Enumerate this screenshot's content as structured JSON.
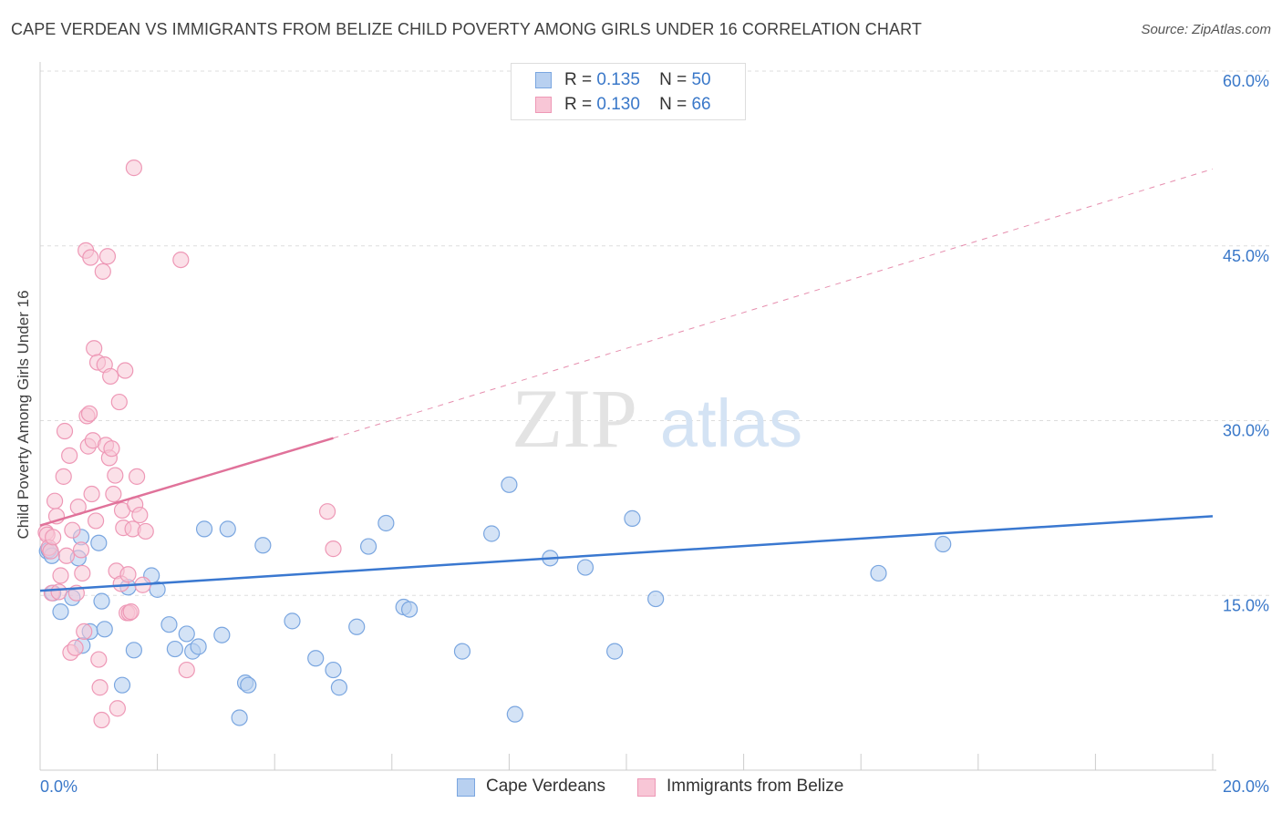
{
  "title": "CAPE VERDEAN VS IMMIGRANTS FROM BELIZE CHILD POVERTY AMONG GIRLS UNDER 16 CORRELATION CHART",
  "source": "Source: ZipAtlas.com",
  "watermark": {
    "zip": "ZIP",
    "atlas": "atlas"
  },
  "legend_top": [
    {
      "r_label": "R =",
      "r_value": "0.135",
      "n_label": "N =",
      "n_value": "50"
    },
    {
      "r_label": "R =",
      "r_value": "0.130",
      "n_label": "N =",
      "n_value": "66"
    }
  ],
  "legend_bottom": [
    "Cape Verdeans",
    "Immigrants from Belize"
  ],
  "colors": {
    "blue_fill": "#b8d0f0",
    "blue_stroke": "#7aa6e0",
    "blue_line": "#3a78d0",
    "pink_fill": "#f8c6d6",
    "pink_stroke": "#ee98b6",
    "pink_line": "#e0729a",
    "axis_text": "#3a78c9",
    "grid": "#dddddd"
  },
  "chart_data": {
    "type": "scatter",
    "title": "CAPE VERDEAN VS IMMIGRANTS FROM BELIZE CHILD POVERTY AMONG GIRLS UNDER 16 CORRELATION CHART",
    "xlabel": "",
    "ylabel": "Child Poverty Among Girls Under 16",
    "xlim": [
      0,
      20
    ],
    "ylim": [
      0,
      60
    ],
    "x_tick_labels": [
      "0.0%",
      "20.0%"
    ],
    "y_tick_labels": [
      "15.0%",
      "30.0%",
      "45.0%",
      "60.0%"
    ],
    "y_ticks": [
      15,
      30,
      45,
      60
    ],
    "series": [
      {
        "name": "Cape Verdeans",
        "r": 0.135,
        "n": 50,
        "trend": {
          "x": [
            0,
            20
          ],
          "y": [
            15.4,
            21.8
          ],
          "style": "solid"
        },
        "points": [
          [
            0.12,
            18.8
          ],
          [
            0.15,
            18.9
          ],
          [
            0.2,
            18.4
          ],
          [
            0.22,
            15.2
          ],
          [
            0.35,
            13.6
          ],
          [
            0.55,
            14.8
          ],
          [
            0.65,
            18.2
          ],
          [
            0.7,
            20.0
          ],
          [
            0.72,
            10.7
          ],
          [
            0.85,
            11.9
          ],
          [
            1.0,
            19.5
          ],
          [
            1.05,
            14.5
          ],
          [
            1.1,
            12.1
          ],
          [
            1.4,
            7.3
          ],
          [
            1.5,
            15.7
          ],
          [
            1.6,
            10.3
          ],
          [
            1.9,
            16.7
          ],
          [
            2.0,
            15.5
          ],
          [
            2.2,
            12.5
          ],
          [
            2.3,
            10.4
          ],
          [
            2.5,
            11.7
          ],
          [
            2.6,
            10.2
          ],
          [
            2.7,
            10.6
          ],
          [
            2.8,
            20.7
          ],
          [
            3.2,
            20.7
          ],
          [
            3.1,
            11.6
          ],
          [
            3.4,
            4.5
          ],
          [
            3.5,
            7.5
          ],
          [
            3.55,
            7.3
          ],
          [
            3.8,
            19.3
          ],
          [
            4.3,
            12.8
          ],
          [
            4.7,
            9.6
          ],
          [
            5.0,
            8.6
          ],
          [
            5.1,
            7.1
          ],
          [
            5.4,
            12.3
          ],
          [
            5.6,
            19.2
          ],
          [
            5.9,
            21.2
          ],
          [
            6.2,
            14.0
          ],
          [
            6.3,
            13.8
          ],
          [
            7.2,
            10.2
          ],
          [
            7.7,
            20.3
          ],
          [
            8.0,
            24.5
          ],
          [
            8.1,
            4.8
          ],
          [
            8.7,
            18.2
          ],
          [
            9.3,
            17.4
          ],
          [
            9.8,
            10.2
          ],
          [
            10.1,
            21.6
          ],
          [
            10.5,
            14.7
          ],
          [
            14.3,
            16.9
          ],
          [
            15.4,
            19.4
          ]
        ]
      },
      {
        "name": "Immigrants from Belize",
        "r": 0.13,
        "n": 66,
        "trend": {
          "x": [
            0,
            5.0
          ],
          "y": [
            21.0,
            28.5
          ],
          "style": "solid",
          "extended": {
            "x": [
              5.0,
              20
            ],
            "y": [
              28.5,
              51.6
            ],
            "style": "dashed"
          }
        },
        "points": [
          [
            0.1,
            20.4
          ],
          [
            0.12,
            20.2
          ],
          [
            0.15,
            19.1
          ],
          [
            0.18,
            18.8
          ],
          [
            0.2,
            15.2
          ],
          [
            0.22,
            20.0
          ],
          [
            0.25,
            23.1
          ],
          [
            0.28,
            21.8
          ],
          [
            0.32,
            15.3
          ],
          [
            0.35,
            16.7
          ],
          [
            0.4,
            25.2
          ],
          [
            0.42,
            29.1
          ],
          [
            0.45,
            18.4
          ],
          [
            0.5,
            27.0
          ],
          [
            0.52,
            10.1
          ],
          [
            0.55,
            20.6
          ],
          [
            0.6,
            10.5
          ],
          [
            0.62,
            15.2
          ],
          [
            0.65,
            22.6
          ],
          [
            0.7,
            18.9
          ],
          [
            0.72,
            16.9
          ],
          [
            0.75,
            11.9
          ],
          [
            0.78,
            44.6
          ],
          [
            0.8,
            30.4
          ],
          [
            0.82,
            27.8
          ],
          [
            0.84,
            30.6
          ],
          [
            0.86,
            44.0
          ],
          [
            0.88,
            23.7
          ],
          [
            0.9,
            28.3
          ],
          [
            0.92,
            36.2
          ],
          [
            0.95,
            21.4
          ],
          [
            0.98,
            35.0
          ],
          [
            1.0,
            9.5
          ],
          [
            1.02,
            7.1
          ],
          [
            1.05,
            4.3
          ],
          [
            1.07,
            42.8
          ],
          [
            1.1,
            34.8
          ],
          [
            1.12,
            27.9
          ],
          [
            1.15,
            44.1
          ],
          [
            1.18,
            26.8
          ],
          [
            1.2,
            33.8
          ],
          [
            1.22,
            27.6
          ],
          [
            1.25,
            23.7
          ],
          [
            1.28,
            25.3
          ],
          [
            1.3,
            17.1
          ],
          [
            1.32,
            5.3
          ],
          [
            1.35,
            31.6
          ],
          [
            1.38,
            16.0
          ],
          [
            1.4,
            22.3
          ],
          [
            1.42,
            20.8
          ],
          [
            1.45,
            34.3
          ],
          [
            1.48,
            13.5
          ],
          [
            1.5,
            16.8
          ],
          [
            1.52,
            13.5
          ],
          [
            1.55,
            13.6
          ],
          [
            1.58,
            20.7
          ],
          [
            1.6,
            51.7
          ],
          [
            1.62,
            22.8
          ],
          [
            1.65,
            25.2
          ],
          [
            1.7,
            21.9
          ],
          [
            1.75,
            15.9
          ],
          [
            1.8,
            20.5
          ],
          [
            2.4,
            43.8
          ],
          [
            2.5,
            8.6
          ],
          [
            4.9,
            22.2
          ],
          [
            5.0,
            19.0
          ]
        ]
      }
    ]
  }
}
